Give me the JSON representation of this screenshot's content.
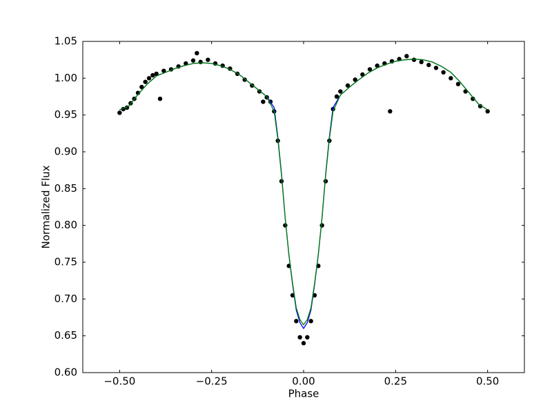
{
  "chart_data": {
    "type": "scatter",
    "xlabel": "Phase",
    "ylabel": "Normalized Flux",
    "xlim": [
      -0.6,
      0.6
    ],
    "ylim": [
      0.6,
      1.05
    ],
    "xticks": [
      {
        "value": -0.5,
        "label": "−0.50"
      },
      {
        "value": -0.25,
        "label": "−0.25"
      },
      {
        "value": 0,
        "label": "0.00"
      },
      {
        "value": 0.25,
        "label": "0.25"
      },
      {
        "value": 0.5,
        "label": "0.50"
      }
    ],
    "yticks": [
      {
        "value": 0.6,
        "label": "0.60"
      },
      {
        "value": 0.65,
        "label": "0.65"
      },
      {
        "value": 0.7,
        "label": "0.70"
      },
      {
        "value": 0.75,
        "label": "0.75"
      },
      {
        "value": 0.8,
        "label": "0.80"
      },
      {
        "value": 0.85,
        "label": "0.85"
      },
      {
        "value": 0.9,
        "label": "0.90"
      },
      {
        "value": 0.95,
        "label": "0.95"
      },
      {
        "value": 1.0,
        "label": "1.00"
      },
      {
        "value": 1.05,
        "label": "1.05"
      }
    ],
    "series": [
      {
        "type": "scatter",
        "color": "#000000",
        "x": [
          -0.5,
          -0.49,
          -0.48,
          -0.47,
          -0.46,
          -0.45,
          -0.44,
          -0.43,
          -0.42,
          -0.41,
          -0.4,
          -0.39,
          -0.38,
          -0.36,
          -0.34,
          -0.32,
          -0.3,
          -0.29,
          -0.28,
          -0.26,
          -0.24,
          -0.22,
          -0.2,
          -0.18,
          -0.16,
          -0.14,
          -0.12,
          -0.11,
          -0.1,
          -0.09,
          -0.08,
          -0.07,
          -0.06,
          -0.05,
          -0.04,
          -0.03,
          -0.02,
          -0.01,
          0,
          0.01,
          0.02,
          0.03,
          0.04,
          0.05,
          0.06,
          0.07,
          0.08,
          0.09,
          0.1,
          0.12,
          0.14,
          0.16,
          0.18,
          0.2,
          0.22,
          0.235,
          0.24,
          0.26,
          0.28,
          0.3,
          0.32,
          0.34,
          0.36,
          0.38,
          0.4,
          0.42,
          0.44,
          0.46,
          0.48,
          0.5
        ],
        "values": [
          0.953,
          0.958,
          0.96,
          0.966,
          0.972,
          0.98,
          0.988,
          0.995,
          1.0,
          1.004,
          1.006,
          0.972,
          1.01,
          1.012,
          1.016,
          1.02,
          1.024,
          1.034,
          1.022,
          1.025,
          1.02,
          1.017,
          1.013,
          1.006,
          0.998,
          0.99,
          0.982,
          0.968,
          0.974,
          0.968,
          0.955,
          0.915,
          0.86,
          0.8,
          0.745,
          0.705,
          0.67,
          0.648,
          0.64,
          0.648,
          0.67,
          0.705,
          0.745,
          0.8,
          0.86,
          0.915,
          0.958,
          0.975,
          0.982,
          0.99,
          0.998,
          1.005,
          1.012,
          1.017,
          1.02,
          0.955,
          1.023,
          1.026,
          1.03,
          1.025,
          1.022,
          1.018,
          1.014,
          1.008,
          1.0,
          0.992,
          0.982,
          0.972,
          0.962,
          0.955
        ]
      },
      {
        "type": "line",
        "color": "#0000ff",
        "x": [
          -0.5,
          -0.475,
          -0.45,
          -0.425,
          -0.4,
          -0.375,
          -0.35,
          -0.325,
          -0.3,
          -0.275,
          -0.25,
          -0.225,
          -0.2,
          -0.175,
          -0.15,
          -0.125,
          -0.1,
          -0.08,
          -0.07,
          -0.06,
          -0.05,
          -0.04,
          -0.03,
          -0.02,
          -0.01,
          0,
          0.01,
          0.02,
          0.03,
          0.04,
          0.05,
          0.06,
          0.07,
          0.08,
          0.1,
          0.125,
          0.15,
          0.175,
          0.2,
          0.225,
          0.25,
          0.275,
          0.3,
          0.325,
          0.35,
          0.375,
          0.4,
          0.425,
          0.45,
          0.475,
          0.5
        ],
        "values": [
          0.957,
          0.962,
          0.978,
          0.992,
          1.003,
          1.008,
          1.013,
          1.017,
          1.02,
          1.021,
          1.02,
          1.017,
          1.012,
          1.005,
          0.995,
          0.985,
          0.975,
          0.96,
          0.92,
          0.87,
          0.81,
          0.76,
          0.72,
          0.685,
          0.668,
          0.66,
          0.668,
          0.685,
          0.72,
          0.76,
          0.81,
          0.87,
          0.92,
          0.96,
          0.977,
          0.988,
          0.998,
          1.007,
          1.014,
          1.019,
          1.023,
          1.025,
          1.026,
          1.025,
          1.022,
          1.016,
          1.008,
          0.995,
          0.98,
          0.965,
          0.957
        ]
      },
      {
        "type": "line",
        "color": "#008000",
        "x": [
          -0.5,
          -0.475,
          -0.45,
          -0.425,
          -0.4,
          -0.375,
          -0.35,
          -0.325,
          -0.3,
          -0.275,
          -0.25,
          -0.225,
          -0.2,
          -0.175,
          -0.15,
          -0.125,
          -0.1,
          -0.08,
          -0.07,
          -0.06,
          -0.05,
          -0.04,
          -0.03,
          -0.02,
          -0.01,
          0,
          0.01,
          0.02,
          0.03,
          0.04,
          0.05,
          0.06,
          0.07,
          0.08,
          0.1,
          0.125,
          0.15,
          0.175,
          0.2,
          0.225,
          0.25,
          0.275,
          0.3,
          0.325,
          0.35,
          0.375,
          0.4,
          0.425,
          0.45,
          0.475,
          0.5
        ],
        "values": [
          0.957,
          0.962,
          0.978,
          0.992,
          1.003,
          1.008,
          1.013,
          1.017,
          1.02,
          1.021,
          1.02,
          1.017,
          1.012,
          1.005,
          0.995,
          0.985,
          0.975,
          0.955,
          0.917,
          0.868,
          0.81,
          0.761,
          0.722,
          0.688,
          0.672,
          0.665,
          0.672,
          0.688,
          0.722,
          0.761,
          0.81,
          0.868,
          0.917,
          0.955,
          0.977,
          0.988,
          0.998,
          1.007,
          1.014,
          1.019,
          1.023,
          1.025,
          1.026,
          1.025,
          1.022,
          1.016,
          1.008,
          0.995,
          0.98,
          0.965,
          0.957
        ]
      }
    ]
  }
}
